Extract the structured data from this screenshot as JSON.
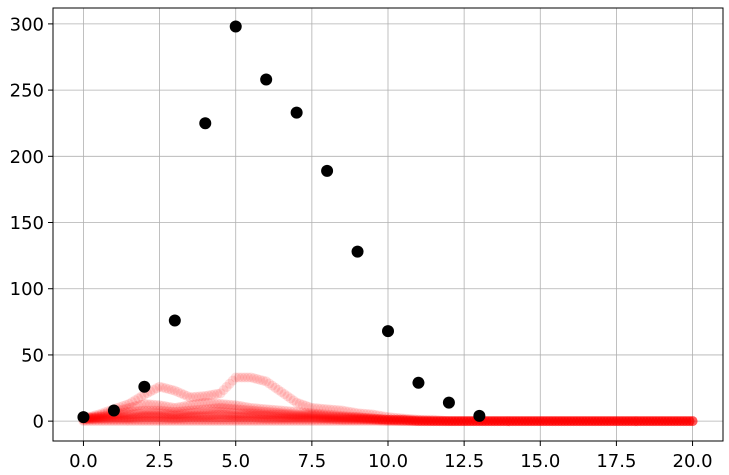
{
  "chart_data": {
    "type": "scatter",
    "title": "",
    "xlabel": "",
    "ylabel": "",
    "xlim": [
      -1.0,
      21.0
    ],
    "ylim": [
      -15.0,
      312.0
    ],
    "grid": true,
    "xticks": [
      0.0,
      2.5,
      5.0,
      7.5,
      10.0,
      12.5,
      15.0,
      17.5,
      20.0
    ],
    "xtick_labels": [
      "0.0",
      "2.5",
      "5.0",
      "7.5",
      "10.0",
      "12.5",
      "15.0",
      "17.5",
      "20.0"
    ],
    "yticks": [
      0,
      50,
      100,
      150,
      200,
      250,
      300
    ],
    "ytick_labels": [
      "0",
      "50",
      "100",
      "150",
      "200",
      "250",
      "300"
    ],
    "series": [
      {
        "style": "black-dots",
        "color": "#000000",
        "x": [
          0,
          1,
          2,
          3,
          4,
          5,
          6,
          7,
          8,
          9,
          10,
          11,
          12,
          13
        ],
        "y": [
          3,
          8,
          26,
          76,
          225,
          298,
          258,
          233,
          189,
          128,
          68,
          29,
          14,
          4
        ]
      },
      {
        "style": "red-trajectory",
        "color": "#ff0000",
        "x": [
          0.0,
          0.5,
          1.0,
          1.5,
          2.0,
          2.5,
          3.0,
          3.5,
          4.0,
          4.5,
          5.0,
          5.5,
          6.0,
          6.5,
          7.0,
          7.5,
          8.0,
          8.5,
          9.0,
          9.5,
          10.0,
          10.5,
          11.0,
          11.5,
          12.0,
          12.5,
          13.0,
          14.0,
          15.0,
          16.0,
          17.0,
          18.0,
          19.0,
          20.0
        ],
        "y": [
          2,
          5,
          9,
          13,
          20,
          26,
          23,
          18,
          19,
          21,
          33,
          33,
          30,
          22,
          14,
          10,
          9,
          8,
          6,
          5,
          3,
          2,
          1,
          1,
          0,
          0,
          0,
          0,
          0,
          0,
          0,
          0,
          0,
          0
        ]
      },
      {
        "style": "red-trajectory",
        "color": "#ff0000",
        "x": [
          0.0,
          0.5,
          1.0,
          1.5,
          2.0,
          2.5,
          3.0,
          3.5,
          4.0,
          4.5,
          5.0,
          5.5,
          6.0,
          6.5,
          7.0,
          7.5,
          8.0,
          8.5,
          9.0,
          9.5,
          10.0,
          10.5,
          11.0,
          11.5,
          12.0,
          12.5,
          13.0,
          14.0,
          15.0,
          16.0,
          17.0,
          18.0,
          19.0,
          20.0
        ],
        "y": [
          2,
          4,
          7,
          10,
          13,
          12,
          10,
          12,
          14,
          13,
          12,
          10,
          9,
          8,
          7,
          6,
          5,
          4,
          3,
          2,
          1,
          1,
          0,
          0,
          0,
          0,
          0,
          0,
          0,
          0,
          0,
          0,
          0,
          0
        ]
      },
      {
        "style": "red-trajectory",
        "color": "#ff0000",
        "x": [
          0.0,
          0.5,
          1.0,
          1.5,
          2.0,
          2.5,
          3.0,
          3.5,
          4.0,
          4.5,
          5.0,
          5.5,
          6.0,
          6.5,
          7.0,
          7.5,
          8.0,
          8.5,
          9.0,
          9.5,
          10.0,
          10.5,
          11.0,
          11.5,
          12.0,
          12.5,
          13.0,
          14.0,
          15.0,
          16.0,
          17.0,
          18.0,
          19.0,
          20.0
        ],
        "y": [
          2,
          3,
          5,
          7,
          8,
          8,
          7,
          8,
          9,
          10,
          9,
          8,
          7,
          6,
          5,
          5,
          4,
          3,
          3,
          2,
          1,
          1,
          0,
          0,
          0,
          0,
          0,
          0,
          0,
          0,
          0,
          0,
          0,
          0
        ]
      },
      {
        "style": "red-trajectory",
        "color": "#ff0000",
        "x": [
          0.0,
          0.5,
          1.0,
          1.5,
          2.0,
          2.5,
          3.0,
          3.5,
          4.0,
          4.5,
          5.0,
          5.5,
          6.0,
          6.5,
          7.0,
          7.5,
          8.0,
          8.5,
          9.0,
          9.5,
          10.0,
          10.5,
          11.0,
          11.5,
          12.0,
          12.5,
          13.0,
          14.0,
          15.0,
          16.0,
          17.0,
          18.0,
          19.0,
          20.0
        ],
        "y": [
          2,
          3,
          4,
          5,
          6,
          6,
          5,
          6,
          7,
          7,
          6,
          6,
          5,
          5,
          4,
          4,
          3,
          3,
          2,
          2,
          1,
          1,
          1,
          0,
          0,
          0,
          0,
          0,
          0,
          0,
          0,
          0,
          0,
          0
        ]
      },
      {
        "style": "red-trajectory",
        "color": "#ff0000",
        "x": [
          0.0,
          0.5,
          1.0,
          1.5,
          2.0,
          2.5,
          3.0,
          3.5,
          4.0,
          4.5,
          5.0,
          5.5,
          6.0,
          6.5,
          7.0,
          7.5,
          8.0,
          8.5,
          9.0,
          9.5,
          10.0,
          10.5,
          11.0,
          11.5,
          12.0,
          12.5,
          13.0,
          14.0,
          15.0,
          16.0,
          17.0,
          18.0,
          19.0,
          20.0
        ],
        "y": [
          2,
          2,
          3,
          3,
          4,
          4,
          4,
          4,
          4,
          5,
          4,
          4,
          4,
          3,
          3,
          3,
          2,
          2,
          2,
          1,
          1,
          1,
          0,
          0,
          0,
          0,
          0,
          0,
          0,
          0,
          0,
          0,
          0,
          0
        ]
      },
      {
        "style": "red-trajectory",
        "color": "#ff0000",
        "x": [
          0.0,
          0.5,
          1.0,
          1.5,
          2.0,
          2.5,
          3.0,
          3.5,
          4.0,
          4.5,
          5.0,
          5.5,
          6.0,
          6.5,
          7.0,
          7.5,
          8.0,
          8.5,
          9.0,
          9.5,
          10.0,
          10.5,
          11.0,
          11.5,
          12.0,
          12.5,
          13.0,
          14.0,
          15.0,
          16.0,
          17.0,
          18.0,
          19.0,
          20.0
        ],
        "y": [
          1,
          2,
          2,
          2,
          3,
          3,
          2,
          3,
          3,
          3,
          3,
          3,
          2,
          2,
          2,
          2,
          2,
          1,
          1,
          1,
          1,
          0,
          0,
          0,
          0,
          0,
          0,
          0,
          0,
          0,
          0,
          0,
          0,
          0
        ]
      },
      {
        "style": "red-trajectory",
        "color": "#ff0000",
        "x": [
          0.0,
          0.5,
          1.0,
          1.5,
          2.0,
          2.5,
          3.0,
          3.5,
          4.0,
          4.5,
          5.0,
          5.5,
          6.0,
          6.5,
          7.0,
          7.5,
          8.0,
          8.5,
          9.0,
          9.5,
          10.0,
          10.5,
          11.0,
          11.5,
          12.0,
          12.5,
          13.0,
          14.0,
          15.0,
          16.0,
          17.0,
          18.0,
          19.0,
          20.0
        ],
        "y": [
          1,
          1,
          1,
          1,
          1,
          1,
          1,
          1,
          1,
          1,
          1,
          1,
          1,
          1,
          1,
          1,
          1,
          1,
          1,
          1,
          0,
          0,
          0,
          0,
          0,
          0,
          0,
          0,
          0,
          0,
          0,
          0,
          0,
          0
        ]
      },
      {
        "style": "red-trajectory",
        "color": "#ff0000",
        "x": [
          0.0,
          0.5,
          1.0,
          1.5,
          2.0,
          2.5,
          3.0,
          3.5,
          4.0,
          4.5,
          5.0,
          5.5,
          6.0,
          6.5,
          7.0,
          7.5,
          8.0,
          8.5,
          9.0,
          9.5,
          10.0,
          10.5,
          11.0,
          11.5,
          12.0,
          12.5,
          13.0,
          14.0,
          15.0,
          16.0,
          17.0,
          18.0,
          19.0,
          20.0
        ],
        "y": [
          0,
          0,
          0,
          0,
          0,
          0,
          0,
          0,
          0,
          0,
          0,
          0,
          0,
          0,
          0,
          0,
          0,
          0,
          0,
          0,
          0,
          0,
          0,
          0,
          0,
          0,
          0,
          0,
          0,
          0,
          0,
          0,
          0,
          0
        ]
      }
    ]
  }
}
